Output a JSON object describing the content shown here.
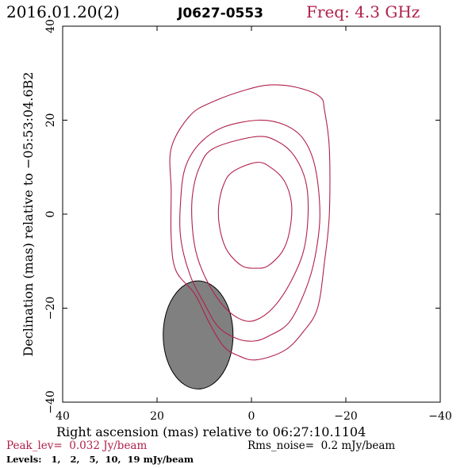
{
  "header": {
    "date": "2016.01.20(2)",
    "source": "J0627-0553",
    "freq": "Freq: 4.3 GHz"
  },
  "footer": {
    "peak": "Peak_lev=  0.032 Jy/beam",
    "rms": "Rms_noise=  0.2 mJy/beam",
    "levels": "Levels:   1,   2,   5,  10,  19 mJy/beam"
  },
  "colors": {
    "contour": "#b0204a",
    "beam_fill": "#808080",
    "axis": "#000000",
    "header_date": "#000000",
    "header_freq": "#b0204a",
    "peak_text": "#b0204a"
  },
  "chart_data": {
    "type": "contour",
    "xlabel": "Right ascension (mas) relative to 06:27:10.1104",
    "ylabel": "Declination (mas) relative to −05:53:04.6B2",
    "xlim": [
      40,
      -40
    ],
    "ylim": [
      -40,
      40
    ],
    "xticks": [
      40,
      20,
      0,
      -20,
      -40
    ],
    "yticks": [
      -40,
      -20,
      0,
      20,
      40
    ],
    "xtick_labels": [
      "40",
      "20",
      "0",
      "−20",
      "−40"
    ],
    "ytick_labels": [
      "−40",
      "−20",
      "0",
      "20",
      "40"
    ],
    "levels_mJy": [
      1,
      2,
      5,
      10,
      19
    ],
    "contours": [
      {
        "level": 1,
        "points": [
          [
            -9.5,
            27
          ],
          [
            -14.5,
            25
          ],
          [
            -15.5,
            22
          ],
          [
            -16.5,
            14
          ],
          [
            -16.5,
            0
          ],
          [
            -15.5,
            -10
          ],
          [
            -14,
            -20
          ],
          [
            -11,
            -25
          ],
          [
            -7,
            -29
          ],
          [
            -1,
            -31
          ],
          [
            3,
            -30
          ],
          [
            6,
            -28
          ],
          [
            9,
            -23
          ],
          [
            12,
            -17
          ],
          [
            16,
            -12
          ],
          [
            17,
            -5
          ],
          [
            17,
            5
          ],
          [
            17,
            14
          ],
          [
            13,
            21
          ],
          [
            8,
            24
          ],
          [
            1,
            26.5
          ],
          [
            -4,
            27.5
          ]
        ]
      },
      {
        "level": 2,
        "points": [
          [
            -1.5,
            20
          ],
          [
            -7,
            19
          ],
          [
            -11,
            16
          ],
          [
            -13.5,
            10
          ],
          [
            -14.5,
            0
          ],
          [
            -13.5,
            -9
          ],
          [
            -11.5,
            -16
          ],
          [
            -8,
            -23
          ],
          [
            -3.5,
            -26
          ],
          [
            -0.5,
            -27
          ],
          [
            3,
            -26.5
          ],
          [
            7,
            -24
          ],
          [
            10,
            -19
          ],
          [
            13,
            -13
          ],
          [
            15,
            -5
          ],
          [
            15,
            3
          ],
          [
            14,
            10
          ],
          [
            11,
            15
          ],
          [
            6,
            18.5
          ]
        ]
      },
      {
        "level": 5,
        "points": [
          [
            -1,
            16.5
          ],
          [
            -5.5,
            15.5
          ],
          [
            -9,
            12.5
          ],
          [
            -11.5,
            7
          ],
          [
            -12,
            0
          ],
          [
            -11,
            -8
          ],
          [
            -8,
            -15
          ],
          [
            -4.5,
            -20
          ],
          [
            -1,
            -22.5
          ],
          [
            2,
            -22.5
          ],
          [
            5.5,
            -20
          ],
          [
            9,
            -15
          ],
          [
            11.5,
            -9
          ],
          [
            12.5,
            -3
          ],
          [
            12.5,
            4
          ],
          [
            11,
            10
          ],
          [
            8,
            14
          ]
        ]
      },
      {
        "level": 10,
        "points": [
          [
            -1,
            11
          ],
          [
            -4,
            10
          ],
          [
            -7,
            7
          ],
          [
            -8.5,
            2
          ],
          [
            -8,
            -4
          ],
          [
            -6.5,
            -8
          ],
          [
            -3.5,
            -11
          ],
          [
            -1,
            -11.5
          ],
          [
            2,
            -11
          ],
          [
            5,
            -8
          ],
          [
            6.5,
            -4
          ],
          [
            7,
            1
          ],
          [
            6,
            6
          ],
          [
            4,
            9
          ]
        ]
      },
      {
        "level": 19,
        "points": []
      }
    ],
    "beam": {
      "cx": 11.3,
      "cy": -25.7,
      "semi_major": 11.5,
      "semi_minor": 7.4,
      "pa_deg": 0
    }
  }
}
